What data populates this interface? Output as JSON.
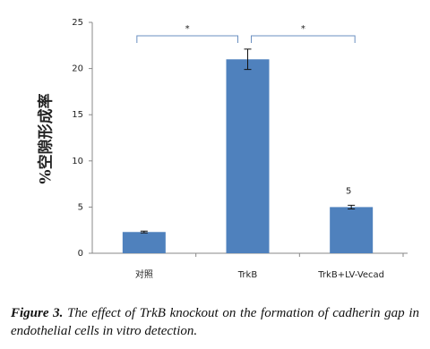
{
  "chart_data": {
    "type": "bar",
    "ylabel": "%空隙形成率",
    "categories": [
      "对照",
      "TrkB",
      "TrkB+LV-Vecad"
    ],
    "values": [
      2.3,
      21,
      5
    ],
    "errors": [
      0.1,
      1.1,
      0.2
    ],
    "value_labels": [
      null,
      null,
      "5"
    ],
    "annotations": [
      "*",
      "*"
    ],
    "color": "#4f81bd",
    "ylim": [
      0,
      25
    ],
    "yticks": [
      0,
      5,
      10,
      15,
      20,
      25
    ],
    "grid": false
  },
  "caption": {
    "label": "Figure 3.",
    "text": "The effect of TrkB knockout on the formation of cadherin gap in endothelial cells in vitro detection."
  }
}
